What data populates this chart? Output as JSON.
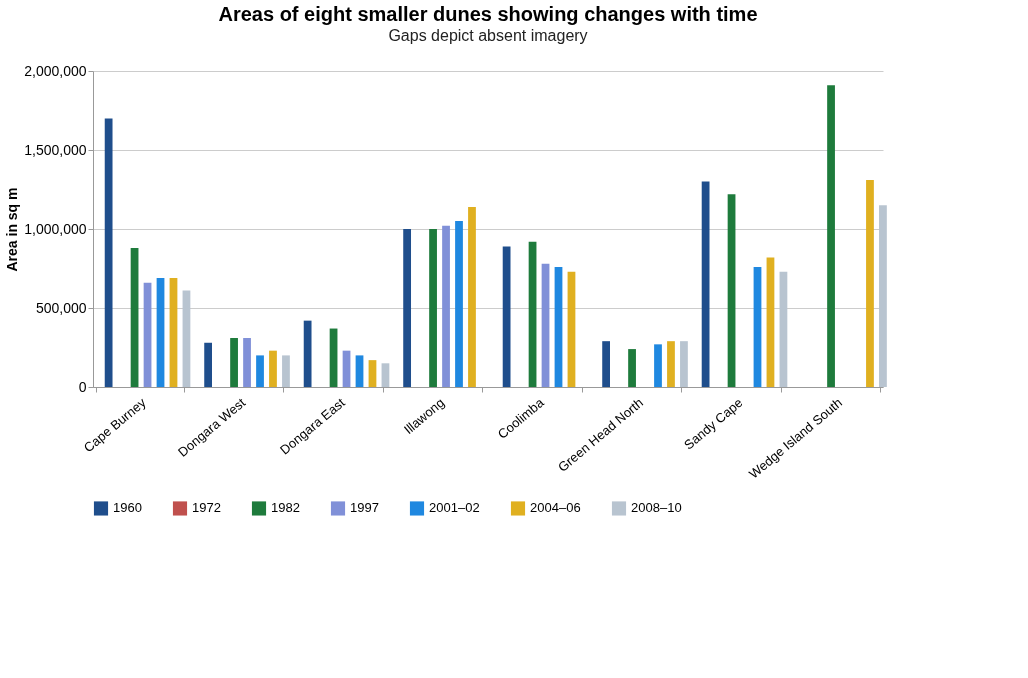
{
  "chart_data": {
    "type": "bar",
    "title": "Areas of eight smaller dunes showing changes with time",
    "subtitle": "Gaps depict absent imagery",
    "ylabel": "Area in sq m",
    "categories": [
      "Cape Burney",
      "Dongara West",
      "Dongara East",
      "Illawong",
      "Coolimba",
      "Green Head North",
      "Sandy Cape",
      "Wedge Island South"
    ],
    "series": [
      {
        "name": "1960",
        "color": "#1f4e8c",
        "values": [
          1700000,
          280000,
          420000,
          1000000,
          890000,
          290000,
          1300000,
          null
        ]
      },
      {
        "name": "1972",
        "color": "#c0504d",
        "values": [
          null,
          null,
          null,
          null,
          null,
          null,
          null,
          null
        ]
      },
      {
        "name": "1982",
        "color": "#1e7b3c",
        "values": [
          880000,
          310000,
          370000,
          1000000,
          920000,
          240000,
          1220000,
          1910000
        ]
      },
      {
        "name": "1997",
        "color": "#8090d8",
        "values": [
          660000,
          310000,
          230000,
          1020000,
          780000,
          null,
          null,
          null
        ]
      },
      {
        "name": "2001–02",
        "color": "#1f88e0",
        "values": [
          690000,
          200000,
          200000,
          1050000,
          760000,
          270000,
          760000,
          null
        ]
      },
      {
        "name": "2004–06",
        "color": "#e0b020",
        "values": [
          690000,
          230000,
          170000,
          1140000,
          730000,
          290000,
          820000,
          1310000
        ]
      },
      {
        "name": "2008–10",
        "color": "#b8c4d0",
        "values": [
          610000,
          200000,
          150000,
          null,
          null,
          290000,
          730000,
          1150000
        ]
      }
    ],
    "ylim": [
      0,
      2000000
    ],
    "yticks": [
      0,
      {
        "value": 500000,
        "label": "500,000"
      },
      {
        "value": 1000000,
        "label": "1,000,000"
      },
      {
        "value": 1500000,
        "label": "1,500,000"
      },
      {
        "value": 2000000,
        "label": "2,000,000"
      }
    ],
    "grid": "y",
    "legend": "bottom"
  }
}
